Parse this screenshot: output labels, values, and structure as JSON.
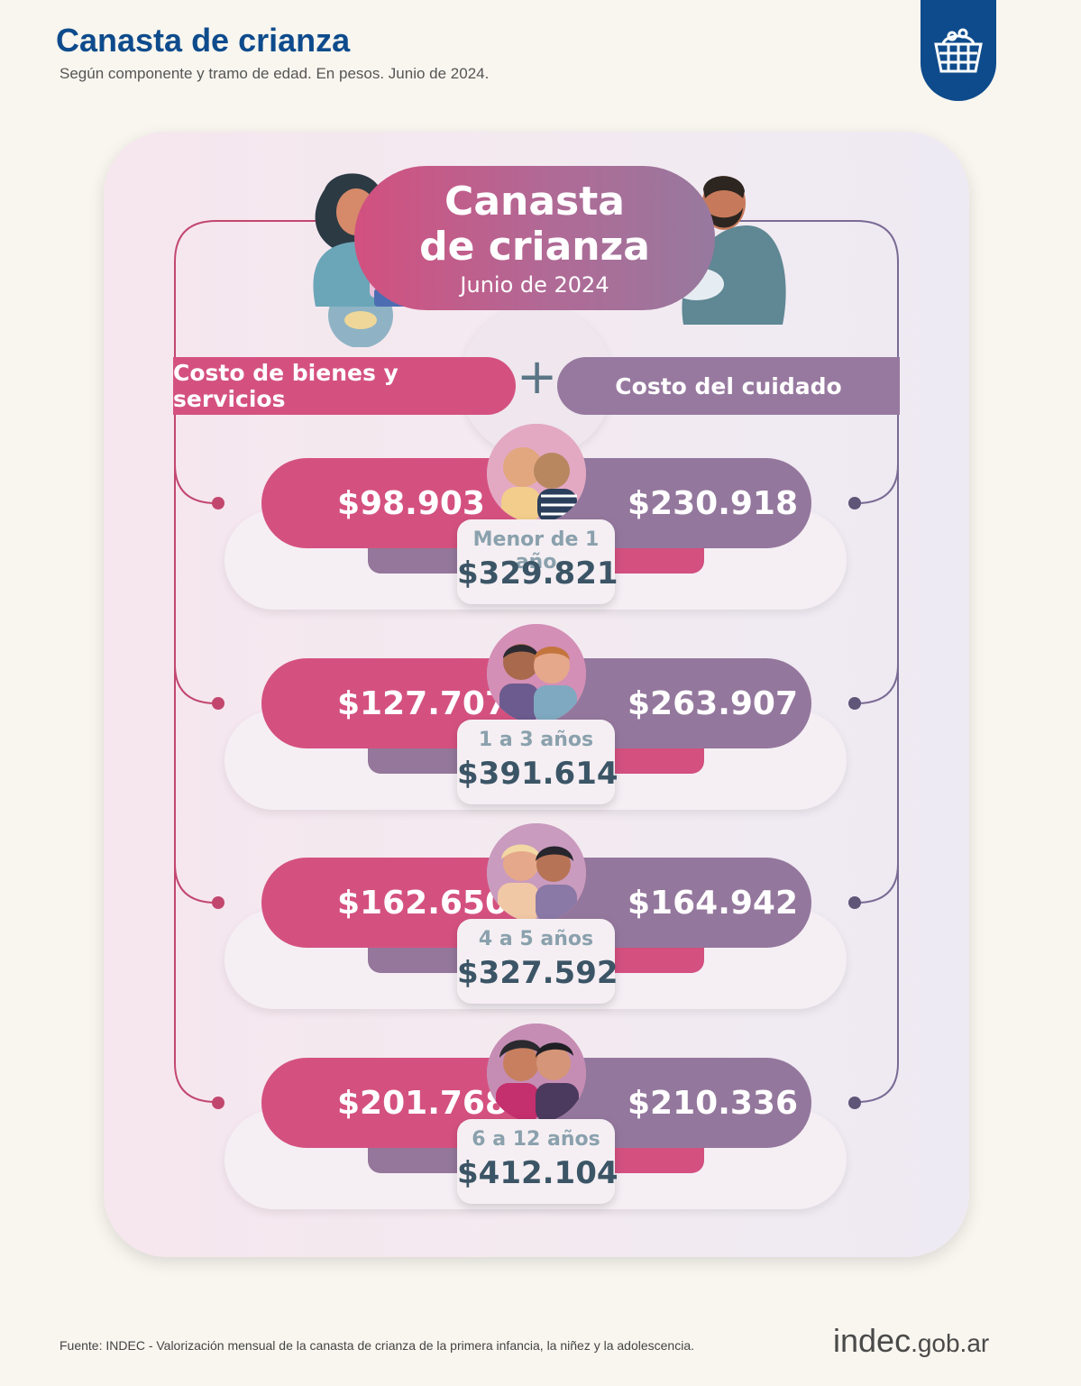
{
  "header": {
    "title": "Canasta de crianza",
    "subtitle": "Según componente y tramo de edad. En pesos. Junio de 2024."
  },
  "logo_badge": {
    "icon": "shopping-basket-icon",
    "color": "#0e4b8c"
  },
  "hero": {
    "title_line1": "Canasta",
    "title_line2": "de crianza",
    "date": "Junio de 2024"
  },
  "labels": {
    "left": "Costo de bienes y servicios",
    "plus": "+",
    "right": "Costo del cuidado"
  },
  "colors": {
    "goods": "#d4517f",
    "care": "#94779d",
    "brand": "#0e4b8c"
  },
  "rows": [
    {
      "age": "Menor de 1 año",
      "goods": "$98.903",
      "care": "$230.918",
      "total": "$329.821"
    },
    {
      "age": "1 a 3 años",
      "goods": "$127.707",
      "care": "$263.907",
      "total": "$391.614"
    },
    {
      "age": "4 a 5 años",
      "goods": "$162.650",
      "care": "$164.942",
      "total": "$327.592"
    },
    {
      "age": "6 a 12 años",
      "goods": "$201.768",
      "care": "$210.336",
      "total": "$412.104"
    }
  ],
  "footer": {
    "source": "Fuente: INDEC - Valorización mensual de la canasta de crianza de la primera infancia, la niñez y la adolescencia.",
    "logo_main": "indec",
    "logo_suffix": ".gob.ar"
  }
}
